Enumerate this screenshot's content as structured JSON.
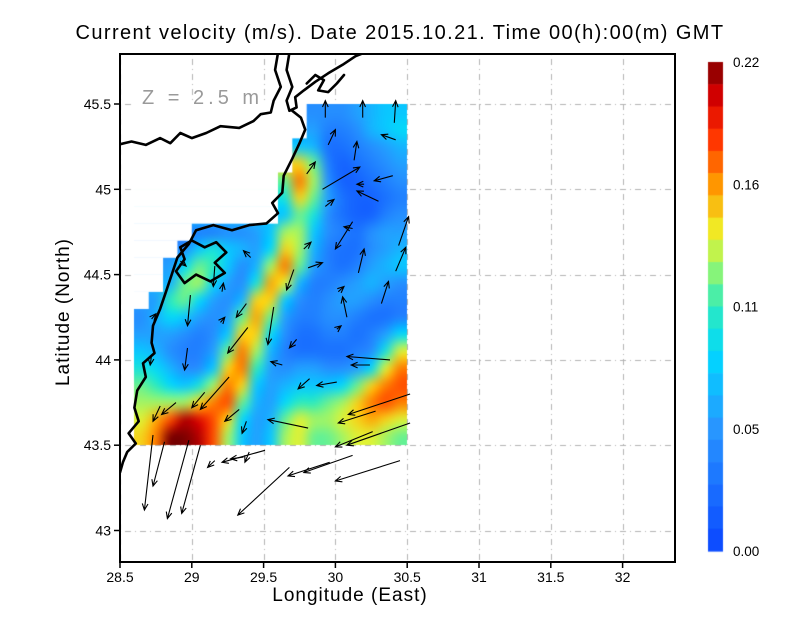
{
  "title": "Current velocity (m/s). Date 2015.10.21. Time 00(h):00(m) GMT",
  "annotation": "Z = 2.5 m",
  "axes": {
    "x_label": "Longitude (East)",
    "y_label": "Latitude (North)",
    "x_tick_values": [
      28.5,
      29,
      29.5,
      30,
      30.5,
      31,
      31.5,
      32
    ],
    "x_tick_labels": [
      "28.5",
      "29",
      "29.5",
      "30",
      "30.5",
      "31",
      "31.5",
      "32"
    ],
    "y_tick_values": [
      45.5,
      45,
      44.5,
      44,
      43.5,
      43
    ],
    "y_tick_labels": [
      "45.5",
      "45",
      "44.5",
      "44",
      "43.5",
      "43"
    ],
    "x_range": [
      28.5,
      32.36
    ],
    "y_range": [
      42.81,
      45.79
    ],
    "grid": "dash-dot",
    "grid_color": "#b3b3b3",
    "frame_color": "#000000"
  },
  "colorbar": {
    "min": 0.0,
    "max": 0.22,
    "tick_labels": [
      "0.22",
      "0.16",
      "0.11",
      "0.05",
      "0.00"
    ],
    "tick_fractions_from_top": [
      0,
      0.25,
      0.5,
      0.75,
      1
    ],
    "bands": 22,
    "colormap_stops": [
      [
        0.0,
        10,
        70,
        255
      ],
      [
        0.25,
        40,
        150,
        255
      ],
      [
        0.4,
        0,
        215,
        255
      ],
      [
        0.5,
        45,
        235,
        190
      ],
      [
        0.58,
        150,
        245,
        110
      ],
      [
        0.65,
        240,
        240,
        40
      ],
      [
        0.75,
        255,
        150,
        0
      ],
      [
        0.85,
        255,
        45,
        0
      ],
      [
        0.93,
        210,
        0,
        0
      ],
      [
        1.0,
        125,
        0,
        0
      ]
    ]
  },
  "style_colors": {
    "coastline": "#000000",
    "arrows": "#000000",
    "annotation_gray": "#9a9a9a",
    "background": "#ffffff"
  },
  "chart_data": {
    "type": "heatmap",
    "subtype": "filled-contour map with quiver vectors",
    "units": "m/s",
    "title": "Current velocity (m/s). Date 2015.10.21. Time 00(h):00(m) GMT",
    "xlabel": "Longitude (East)",
    "ylabel": "Latitude (North)",
    "zlim": [
      0.0,
      0.22
    ],
    "lon_edges": [
      28.6,
      30.5
    ],
    "lat_edges": [
      43.5,
      45.5
    ],
    "nx": 19,
    "ny": 20,
    "land_sentinel": -1,
    "values_top_down": [
      [
        -1,
        -1,
        -1,
        -1,
        -1,
        -1,
        -1,
        -1,
        -1,
        -1,
        -1,
        -1,
        0.05,
        0.05,
        0.05,
        0.06,
        0.07,
        0.08,
        0.08
      ],
      [
        -1,
        -1,
        -1,
        -1,
        -1,
        -1,
        -1,
        -1,
        -1,
        -1,
        -1,
        -1,
        0.06,
        0.04,
        0.04,
        0.05,
        0.07,
        0.08,
        0.09
      ],
      [
        -1,
        -1,
        -1,
        -1,
        -1,
        -1,
        -1,
        -1,
        -1,
        -1,
        -1,
        0.08,
        0.07,
        0.03,
        0.03,
        0.04,
        0.05,
        0.06,
        0.07
      ],
      [
        -1,
        -1,
        -1,
        -1,
        -1,
        -1,
        -1,
        -1,
        -1,
        -1,
        -1,
        0.15,
        0.12,
        0.04,
        0.02,
        0.03,
        0.04,
        0.05,
        0.06
      ],
      [
        -1,
        -1,
        -1,
        -1,
        -1,
        -1,
        -1,
        -1,
        -1,
        -1,
        0.12,
        0.17,
        0.13,
        0.05,
        0.02,
        0.02,
        0.03,
        0.04,
        0.05
      ],
      [
        -1,
        -1,
        -1,
        -1,
        -1,
        -1,
        -1,
        -1,
        -1,
        -1,
        0.1,
        0.15,
        0.12,
        0.06,
        0.03,
        0.02,
        0.02,
        0.03,
        0.04
      ],
      [
        -1,
        -1,
        -1,
        -1,
        -1,
        -1,
        -1,
        -1,
        -1,
        -1,
        0.08,
        0.12,
        0.1,
        0.05,
        0.03,
        0.02,
        0.02,
        0.04,
        0.05
      ],
      [
        -1,
        -1,
        -1,
        -1,
        0.04,
        0.04,
        0.05,
        0.05,
        0.06,
        0.08,
        0.13,
        0.13,
        0.08,
        0.05,
        0.04,
        0.03,
        0.05,
        0.06,
        0.06
      ],
      [
        -1,
        -1,
        -1,
        0.05,
        0.08,
        0.1,
        0.08,
        0.07,
        0.06,
        0.09,
        0.15,
        0.13,
        0.07,
        0.04,
        0.03,
        0.03,
        0.05,
        0.06,
        0.07
      ],
      [
        -1,
        -1,
        0.06,
        0.09,
        0.12,
        0.11,
        0.08,
        0.05,
        0.07,
        0.13,
        0.17,
        0.12,
        0.06,
        0.04,
        0.03,
        0.04,
        0.06,
        0.07,
        0.08
      ],
      [
        -1,
        -1,
        0.07,
        0.12,
        0.13,
        0.09,
        0.06,
        0.05,
        0.1,
        0.16,
        0.14,
        0.07,
        0.04,
        0.04,
        0.05,
        0.06,
        0.07,
        0.06,
        0.05
      ],
      [
        -1,
        0.06,
        0.11,
        0.12,
        0.09,
        0.06,
        0.05,
        0.07,
        0.15,
        0.15,
        0.08,
        0.05,
        0.04,
        0.05,
        0.06,
        0.06,
        0.05,
        0.04,
        0.04
      ],
      [
        0.05,
        0.07,
        0.09,
        0.08,
        0.06,
        0.05,
        0.06,
        0.12,
        0.16,
        0.12,
        0.06,
        0.04,
        0.04,
        0.05,
        0.05,
        0.04,
        0.03,
        0.03,
        0.04
      ],
      [
        0.06,
        0.06,
        0.06,
        0.05,
        0.04,
        0.05,
        0.08,
        0.15,
        0.15,
        0.09,
        0.05,
        0.03,
        0.03,
        0.04,
        0.04,
        0.03,
        0.04,
        0.06,
        0.09
      ],
      [
        0.08,
        0.07,
        0.05,
        0.04,
        0.04,
        0.06,
        0.12,
        0.17,
        0.13,
        0.07,
        0.04,
        0.03,
        0.03,
        0.03,
        0.03,
        0.04,
        0.05,
        0.1,
        0.14
      ],
      [
        0.1,
        0.09,
        0.07,
        0.05,
        0.05,
        0.08,
        0.15,
        0.17,
        0.11,
        0.06,
        0.05,
        0.06,
        0.06,
        0.05,
        0.05,
        0.06,
        0.09,
        0.14,
        0.17
      ],
      [
        0.12,
        0.11,
        0.09,
        0.08,
        0.1,
        0.13,
        0.17,
        0.15,
        0.08,
        0.06,
        0.07,
        0.08,
        0.08,
        0.08,
        0.09,
        0.12,
        0.15,
        0.17,
        0.18
      ],
      [
        0.13,
        0.13,
        0.13,
        0.13,
        0.15,
        0.17,
        0.18,
        0.12,
        0.07,
        0.06,
        0.09,
        0.11,
        0.11,
        0.12,
        0.13,
        0.15,
        0.17,
        0.18,
        0.17
      ],
      [
        0.14,
        0.16,
        0.18,
        0.21,
        0.2,
        0.18,
        0.15,
        0.09,
        0.06,
        0.07,
        0.12,
        0.14,
        0.13,
        0.13,
        0.14,
        0.15,
        0.16,
        0.15,
        0.14
      ],
      [
        0.15,
        0.17,
        0.22,
        0.22,
        0.21,
        0.18,
        0.13,
        0.08,
        0.06,
        0.08,
        0.13,
        0.14,
        0.12,
        0.12,
        0.13,
        0.14,
        0.14,
        0.13,
        0.12
      ]
    ],
    "quiver_lon_lat_dlon_dlat": [
      [
        29.93,
        45.42,
        0.0,
        0.1
      ],
      [
        30.19,
        45.42,
        0.0,
        0.1
      ],
      [
        30.41,
        45.39,
        0.01,
        0.13
      ],
      [
        29.95,
        45.26,
        0.05,
        0.09
      ],
      [
        30.13,
        45.17,
        0.02,
        0.11
      ],
      [
        30.42,
        45.29,
        -0.1,
        0.03
      ],
      [
        29.8,
        45.09,
        0.06,
        0.07
      ],
      [
        29.91,
        45.0,
        0.26,
        0.13
      ],
      [
        30.4,
        45.08,
        -0.13,
        -0.03
      ],
      [
        30.2,
        45.03,
        -0.05,
        0.0
      ],
      [
        30.3,
        44.93,
        -0.15,
        0.06
      ],
      [
        29.93,
        44.9,
        0.06,
        0.04
      ],
      [
        30.12,
        44.81,
        -0.12,
        -0.16
      ],
      [
        30.12,
        44.77,
        -0.06,
        0.01
      ],
      [
        30.44,
        44.67,
        0.07,
        0.17
      ],
      [
        30.16,
        44.51,
        0.04,
        0.14
      ],
      [
        30.42,
        44.52,
        0.07,
        0.14
      ],
      [
        29.78,
        44.65,
        0.05,
        0.04
      ],
      [
        28.92,
        44.58,
        0.04,
        -0.03
      ],
      [
        29.16,
        44.55,
        -0.01,
        -0.12
      ],
      [
        28.99,
        44.38,
        -0.02,
        -0.18
      ],
      [
        29.21,
        44.4,
        0.01,
        0.05
      ],
      [
        29.41,
        44.6,
        -0.05,
        0.04
      ],
      [
        29.71,
        44.53,
        -0.05,
        -0.12
      ],
      [
        29.81,
        44.54,
        0.1,
        0.03
      ],
      [
        29.2,
        44.22,
        0.03,
        0.03
      ],
      [
        29.38,
        44.33,
        -0.07,
        -0.08
      ],
      [
        29.57,
        44.31,
        -0.04,
        -0.22
      ],
      [
        29.73,
        44.12,
        -0.05,
        -0.05
      ],
      [
        29.39,
        44.19,
        -0.14,
        -0.15
      ],
      [
        28.97,
        44.07,
        -0.02,
        -0.13
      ],
      [
        28.72,
        44.24,
        0.03,
        0.03
      ],
      [
        28.72,
        44.03,
        -0.01,
        -0.06
      ],
      [
        29.63,
        43.97,
        -0.08,
        0.02
      ],
      [
        29.82,
        43.89,
        -0.08,
        -0.06
      ],
      [
        30.01,
        43.87,
        -0.14,
        -0.02
      ],
      [
        29.26,
        43.9,
        -0.2,
        -0.19
      ],
      [
        29.09,
        43.81,
        -0.09,
        -0.09
      ],
      [
        28.89,
        43.75,
        -0.1,
        -0.07
      ],
      [
        28.78,
        43.73,
        -0.05,
        -0.09
      ],
      [
        29.33,
        43.71,
        -0.1,
        -0.07
      ],
      [
        29.38,
        43.64,
        -0.03,
        -0.07
      ],
      [
        29.81,
        43.6,
        -0.28,
        0.05
      ],
      [
        30.02,
        44.4,
        0.04,
        0.03
      ],
      [
        30.08,
        44.25,
        -0.03,
        0.12
      ],
      [
        30.01,
        44.18,
        0.03,
        0.02
      ],
      [
        30.38,
        44.0,
        -0.3,
        0.02
      ],
      [
        30.24,
        43.97,
        -0.13,
        0.0
      ],
      [
        30.32,
        44.33,
        0.05,
        0.13
      ],
      [
        30.52,
        43.8,
        -0.43,
        -0.12
      ],
      [
        30.52,
        43.63,
        -0.44,
        -0.13
      ],
      [
        30.28,
        43.7,
        -0.26,
        -0.07
      ],
      [
        30.26,
        43.58,
        -0.26,
        -0.09
      ],
      [
        30.12,
        43.44,
        -0.34,
        -0.1
      ],
      [
        29.96,
        43.4,
        -0.29,
        -0.08
      ],
      [
        30.45,
        43.41,
        -0.45,
        -0.12
      ],
      [
        28.73,
        43.56,
        -0.06,
        -0.44
      ],
      [
        28.81,
        43.52,
        -0.08,
        -0.26
      ],
      [
        28.98,
        43.53,
        -0.15,
        -0.46
      ],
      [
        29.06,
        43.5,
        -0.13,
        -0.4
      ],
      [
        29.16,
        43.41,
        -0.05,
        -0.04
      ],
      [
        29.36,
        43.43,
        -0.09,
        -0.01
      ],
      [
        29.4,
        43.46,
        -0.03,
        -0.06
      ],
      [
        29.51,
        43.47,
        -0.3,
        -0.07
      ],
      [
        29.68,
        43.37,
        -0.36,
        -0.28
      ]
    ],
    "coastline_paths": [
      [
        [
          29.6,
          45.8
        ],
        [
          29.58,
          45.7
        ],
        [
          29.62,
          45.6
        ],
        [
          29.57,
          45.52
        ],
        [
          29.55,
          45.45
        ],
        [
          29.48,
          45.44
        ],
        [
          29.43,
          45.4
        ],
        [
          29.33,
          45.36
        ],
        [
          29.2,
          45.37
        ],
        [
          29.1,
          45.33
        ],
        [
          29.0,
          45.3
        ],
        [
          28.92,
          45.33
        ],
        [
          28.85,
          45.27
        ],
        [
          28.78,
          45.3
        ],
        [
          28.68,
          45.26
        ],
        [
          28.58,
          45.28
        ],
        [
          28.48,
          45.26
        ]
      ],
      [
        [
          29.68,
          45.8
        ],
        [
          29.66,
          45.7
        ],
        [
          29.7,
          45.6
        ],
        [
          29.66,
          45.52
        ],
        [
          29.68,
          45.46
        ],
        [
          29.73,
          45.48
        ],
        [
          29.72,
          45.54
        ],
        [
          29.78,
          45.58
        ],
        [
          29.86,
          45.63
        ],
        [
          29.95,
          45.68
        ],
        [
          30.05,
          45.73
        ],
        [
          30.14,
          45.78
        ],
        [
          30.2,
          45.8
        ]
      ],
      [
        [
          29.8,
          45.62
        ],
        [
          29.86,
          45.67
        ],
        [
          29.92,
          45.64
        ],
        [
          29.88,
          45.58
        ],
        [
          29.95,
          45.57
        ],
        [
          30.01,
          45.62
        ],
        [
          30.06,
          45.67
        ]
      ],
      [
        [
          29.7,
          45.46
        ],
        [
          29.76,
          45.42
        ],
        [
          29.79,
          45.35
        ],
        [
          29.75,
          45.27
        ],
        [
          29.7,
          45.18
        ],
        [
          29.64,
          45.08
        ],
        [
          29.63,
          44.98
        ],
        [
          29.56,
          44.92
        ],
        [
          29.6,
          44.86
        ],
        [
          29.52,
          44.8
        ],
        [
          29.4,
          44.79
        ],
        [
          29.28,
          44.76
        ],
        [
          29.15,
          44.79
        ],
        [
          29.03,
          44.76
        ],
        [
          28.98,
          44.68
        ],
        [
          28.9,
          44.6
        ],
        [
          28.86,
          44.5
        ],
        [
          28.82,
          44.4
        ],
        [
          28.78,
          44.3
        ],
        [
          28.73,
          44.2
        ],
        [
          28.72,
          44.1
        ],
        [
          28.74,
          44.04
        ],
        [
          28.66,
          43.98
        ],
        [
          28.68,
          43.9
        ],
        [
          28.62,
          43.82
        ],
        [
          28.6,
          43.72
        ],
        [
          28.63,
          43.64
        ],
        [
          28.56,
          43.57
        ],
        [
          28.61,
          43.51
        ],
        [
          28.55,
          43.46
        ],
        [
          28.52,
          43.4
        ],
        [
          28.5,
          43.34
        ]
      ],
      [
        [
          28.92,
          44.66
        ],
        [
          29.0,
          44.7
        ],
        [
          29.09,
          44.66
        ],
        [
          29.17,
          44.69
        ],
        [
          29.24,
          44.63
        ],
        [
          29.16,
          44.57
        ],
        [
          29.23,
          44.51
        ],
        [
          29.13,
          44.46
        ],
        [
          29.03,
          44.5
        ],
        [
          28.95,
          44.45
        ],
        [
          28.89,
          44.52
        ],
        [
          28.95,
          44.59
        ],
        [
          28.92,
          44.66
        ]
      ]
    ]
  }
}
